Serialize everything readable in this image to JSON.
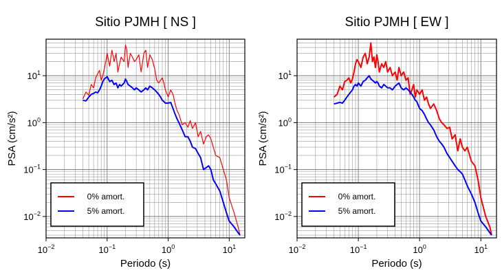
{
  "chart_data": [
    {
      "type": "line",
      "title": "Sitio PJMH [ NS ]",
      "xlabel": "Periodo (s)",
      "ylabel": "PSA (cm/s²)",
      "xscale": "log",
      "yscale": "log",
      "xlim": [
        0.01,
        18
      ],
      "ylim": [
        0.0035,
        60
      ],
      "xticks": [
        {
          "value": 0.01,
          "base": "10",
          "exp": "−2"
        },
        {
          "value": 0.1,
          "base": "10",
          "exp": "−1"
        },
        {
          "value": 1,
          "base": "10",
          "exp": "0"
        },
        {
          "value": 10,
          "base": "10",
          "exp": "1"
        }
      ],
      "yticks": [
        {
          "value": 0.01,
          "base": "10",
          "exp": "−2"
        },
        {
          "value": 0.1,
          "base": "10",
          "exp": "−1"
        },
        {
          "value": 1,
          "base": "10",
          "exp": "0"
        },
        {
          "value": 10,
          "base": "10",
          "exp": "1"
        }
      ],
      "grid": true,
      "legend_position": "bottom-left",
      "series": [
        {
          "name": "0% amort.",
          "color": "#ff0000",
          "x": [
            0.04,
            0.045,
            0.05,
            0.055,
            0.06,
            0.065,
            0.07,
            0.075,
            0.08,
            0.085,
            0.09,
            0.095,
            0.1,
            0.11,
            0.12,
            0.13,
            0.14,
            0.15,
            0.16,
            0.17,
            0.18,
            0.19,
            0.2,
            0.21,
            0.22,
            0.24,
            0.26,
            0.28,
            0.3,
            0.33,
            0.36,
            0.4,
            0.43,
            0.46,
            0.5,
            0.55,
            0.6,
            0.65,
            0.7,
            0.75,
            0.8,
            0.85,
            0.9,
            1.0,
            1.1,
            1.2,
            1.3,
            1.4,
            1.5,
            1.7,
            1.9,
            2.1,
            2.3,
            2.5,
            2.8,
            3.1,
            3.4,
            3.8,
            4.2,
            4.6,
            5.0,
            5.5,
            6.0,
            7.0,
            8.0,
            9.0,
            10,
            12,
            14,
            15
          ],
          "y": [
            3.2,
            4.5,
            3.8,
            6.5,
            5.5,
            9,
            11,
            13,
            8,
            10,
            14,
            20,
            30,
            16,
            35,
            20,
            30,
            12,
            18,
            25,
            22,
            20,
            45,
            35,
            15,
            30,
            25,
            20,
            22,
            28,
            12,
            30,
            35,
            15,
            28,
            22,
            14,
            8,
            7,
            8,
            9,
            7,
            5,
            3.5,
            5,
            4,
            2.5,
            1.8,
            1.5,
            0.9,
            1,
            0.8,
            1.1,
            0.75,
            1.0,
            0.5,
            0.65,
            0.35,
            0.5,
            0.55,
            0.45,
            0.3,
            0.2,
            0.18,
            0.1,
            0.06,
            0.025,
            0.012,
            0.006,
            0.004
          ]
        },
        {
          "name": "5% amort.",
          "color": "#0000ff",
          "x": [
            0.04,
            0.045,
            0.05,
            0.055,
            0.06,
            0.065,
            0.07,
            0.075,
            0.08,
            0.085,
            0.09,
            0.095,
            0.1,
            0.11,
            0.12,
            0.13,
            0.14,
            0.15,
            0.16,
            0.17,
            0.18,
            0.19,
            0.2,
            0.21,
            0.22,
            0.24,
            0.26,
            0.28,
            0.3,
            0.33,
            0.36,
            0.4,
            0.43,
            0.46,
            0.5,
            0.55,
            0.6,
            0.65,
            0.7,
            0.75,
            0.8,
            0.85,
            0.9,
            1.0,
            1.1,
            1.2,
            1.3,
            1.4,
            1.5,
            1.7,
            1.9,
            2.1,
            2.3,
            2.5,
            2.8,
            3.1,
            3.4,
            3.8,
            4.2,
            4.6,
            5.0,
            5.5,
            6.0,
            7.0,
            8.0,
            9.0,
            10,
            12,
            14,
            15
          ],
          "y": [
            3.0,
            2.9,
            3.5,
            4.0,
            4.2,
            4.5,
            4.3,
            5.0,
            6.0,
            7.5,
            8.5,
            9.0,
            9.5,
            7.5,
            8.0,
            6.5,
            7.0,
            5.5,
            6.5,
            6.0,
            6.5,
            7.0,
            8.5,
            7.5,
            6.5,
            6.0,
            5.5,
            5.0,
            5.5,
            5.0,
            4.5,
            5.0,
            5.5,
            5.0,
            6.0,
            5.5,
            5.0,
            4.5,
            4.0,
            3.5,
            3.0,
            2.8,
            2.6,
            2.6,
            2.7,
            2.0,
            1.5,
            1.2,
            1.0,
            0.7,
            0.5,
            0.5,
            0.4,
            0.3,
            0.28,
            0.22,
            0.18,
            0.1,
            0.11,
            0.12,
            0.1,
            0.06,
            0.05,
            0.035,
            0.02,
            0.012,
            0.008,
            0.006,
            0.0045,
            0.004
          ]
        }
      ]
    },
    {
      "type": "line",
      "title": "Sitio PJMH [ EW ]",
      "xlabel": "Periodo (s)",
      "ylabel": "PSA (cm/s²)",
      "xscale": "log",
      "yscale": "log",
      "xlim": [
        0.01,
        18
      ],
      "ylim": [
        0.0035,
        60
      ],
      "xticks": [
        {
          "value": 0.01,
          "base": "10",
          "exp": "−2"
        },
        {
          "value": 0.1,
          "base": "10",
          "exp": "−1"
        },
        {
          "value": 1,
          "base": "10",
          "exp": "0"
        },
        {
          "value": 10,
          "base": "10",
          "exp": "1"
        }
      ],
      "yticks": [
        {
          "value": 0.01,
          "base": "10",
          "exp": "−2"
        },
        {
          "value": 0.1,
          "base": "10",
          "exp": "−1"
        },
        {
          "value": 1,
          "base": "10",
          "exp": "0"
        },
        {
          "value": 10,
          "base": "10",
          "exp": "1"
        }
      ],
      "grid": true,
      "legend_position": "bottom-left",
      "series": [
        {
          "name": "0% amort.",
          "color": "#ff0000",
          "x": [
            0.04,
            0.045,
            0.05,
            0.055,
            0.06,
            0.065,
            0.07,
            0.075,
            0.08,
            0.085,
            0.09,
            0.095,
            0.1,
            0.11,
            0.12,
            0.13,
            0.14,
            0.15,
            0.16,
            0.17,
            0.18,
            0.19,
            0.2,
            0.21,
            0.22,
            0.24,
            0.26,
            0.28,
            0.3,
            0.33,
            0.36,
            0.4,
            0.43,
            0.46,
            0.5,
            0.55,
            0.6,
            0.65,
            0.7,
            0.75,
            0.8,
            0.85,
            0.9,
            1.0,
            1.1,
            1.2,
            1.3,
            1.4,
            1.5,
            1.7,
            1.9,
            2.1,
            2.3,
            2.5,
            2.8,
            3.1,
            3.4,
            3.8,
            4.2,
            4.6,
            5.0,
            5.5,
            6.0,
            7.0,
            8.0,
            9.0,
            10,
            12,
            14,
            15
          ],
          "y": [
            3.5,
            4.0,
            6.0,
            5.0,
            7.5,
            8.0,
            9.0,
            7.0,
            8.5,
            12,
            18,
            22,
            20,
            15,
            25,
            30,
            18,
            25,
            50,
            20,
            25,
            15,
            28,
            20,
            12,
            18,
            15,
            20,
            12,
            15,
            10,
            12,
            8,
            15,
            10,
            12,
            8,
            9,
            4,
            5,
            6.5,
            3.5,
            5,
            4,
            5,
            3,
            3.5,
            2.5,
            2.0,
            2.5,
            1.8,
            1.2,
            1.0,
            0.9,
            0.75,
            0.8,
            0.45,
            0.55,
            0.25,
            0.45,
            0.3,
            0.25,
            0.3,
            0.15,
            0.12,
            0.06,
            0.025,
            0.01,
            0.006,
            0.004
          ]
        },
        {
          "name": "5% amort.",
          "color": "#0000ff",
          "x": [
            0.04,
            0.045,
            0.05,
            0.055,
            0.06,
            0.065,
            0.07,
            0.075,
            0.08,
            0.085,
            0.09,
            0.095,
            0.1,
            0.11,
            0.12,
            0.13,
            0.14,
            0.15,
            0.16,
            0.17,
            0.18,
            0.19,
            0.2,
            0.21,
            0.22,
            0.24,
            0.26,
            0.28,
            0.3,
            0.33,
            0.36,
            0.4,
            0.43,
            0.46,
            0.5,
            0.55,
            0.6,
            0.65,
            0.7,
            0.75,
            0.8,
            0.85,
            0.9,
            1.0,
            1.1,
            1.2,
            1.3,
            1.4,
            1.5,
            1.7,
            1.9,
            2.1,
            2.3,
            2.5,
            2.8,
            3.1,
            3.4,
            3.8,
            4.2,
            4.6,
            5.0,
            5.5,
            6.0,
            7.0,
            8.0,
            9.0,
            10,
            12,
            14,
            15
          ],
          "y": [
            2.5,
            2.6,
            2.7,
            2.6,
            3.0,
            3.5,
            4.0,
            4.5,
            5.0,
            6.0,
            6.5,
            6.0,
            7.0,
            6.0,
            7.5,
            8.0,
            9.0,
            10,
            8.5,
            8.0,
            7.5,
            7.0,
            7.5,
            7.0,
            6.0,
            5.5,
            6.5,
            6.0,
            5.5,
            5.5,
            5.0,
            6.0,
            6.5,
            7.0,
            5.5,
            5.0,
            5.5,
            5.0,
            4.5,
            4.0,
            3.5,
            3.0,
            2.8,
            2.0,
            1.8,
            1.5,
            1.2,
            1.0,
            0.9,
            0.7,
            0.5,
            0.4,
            0.35,
            0.3,
            0.22,
            0.18,
            0.15,
            0.12,
            0.1,
            0.09,
            0.08,
            0.06,
            0.045,
            0.03,
            0.02,
            0.012,
            0.008,
            0.006,
            0.0045,
            0.004
          ]
        }
      ]
    }
  ]
}
